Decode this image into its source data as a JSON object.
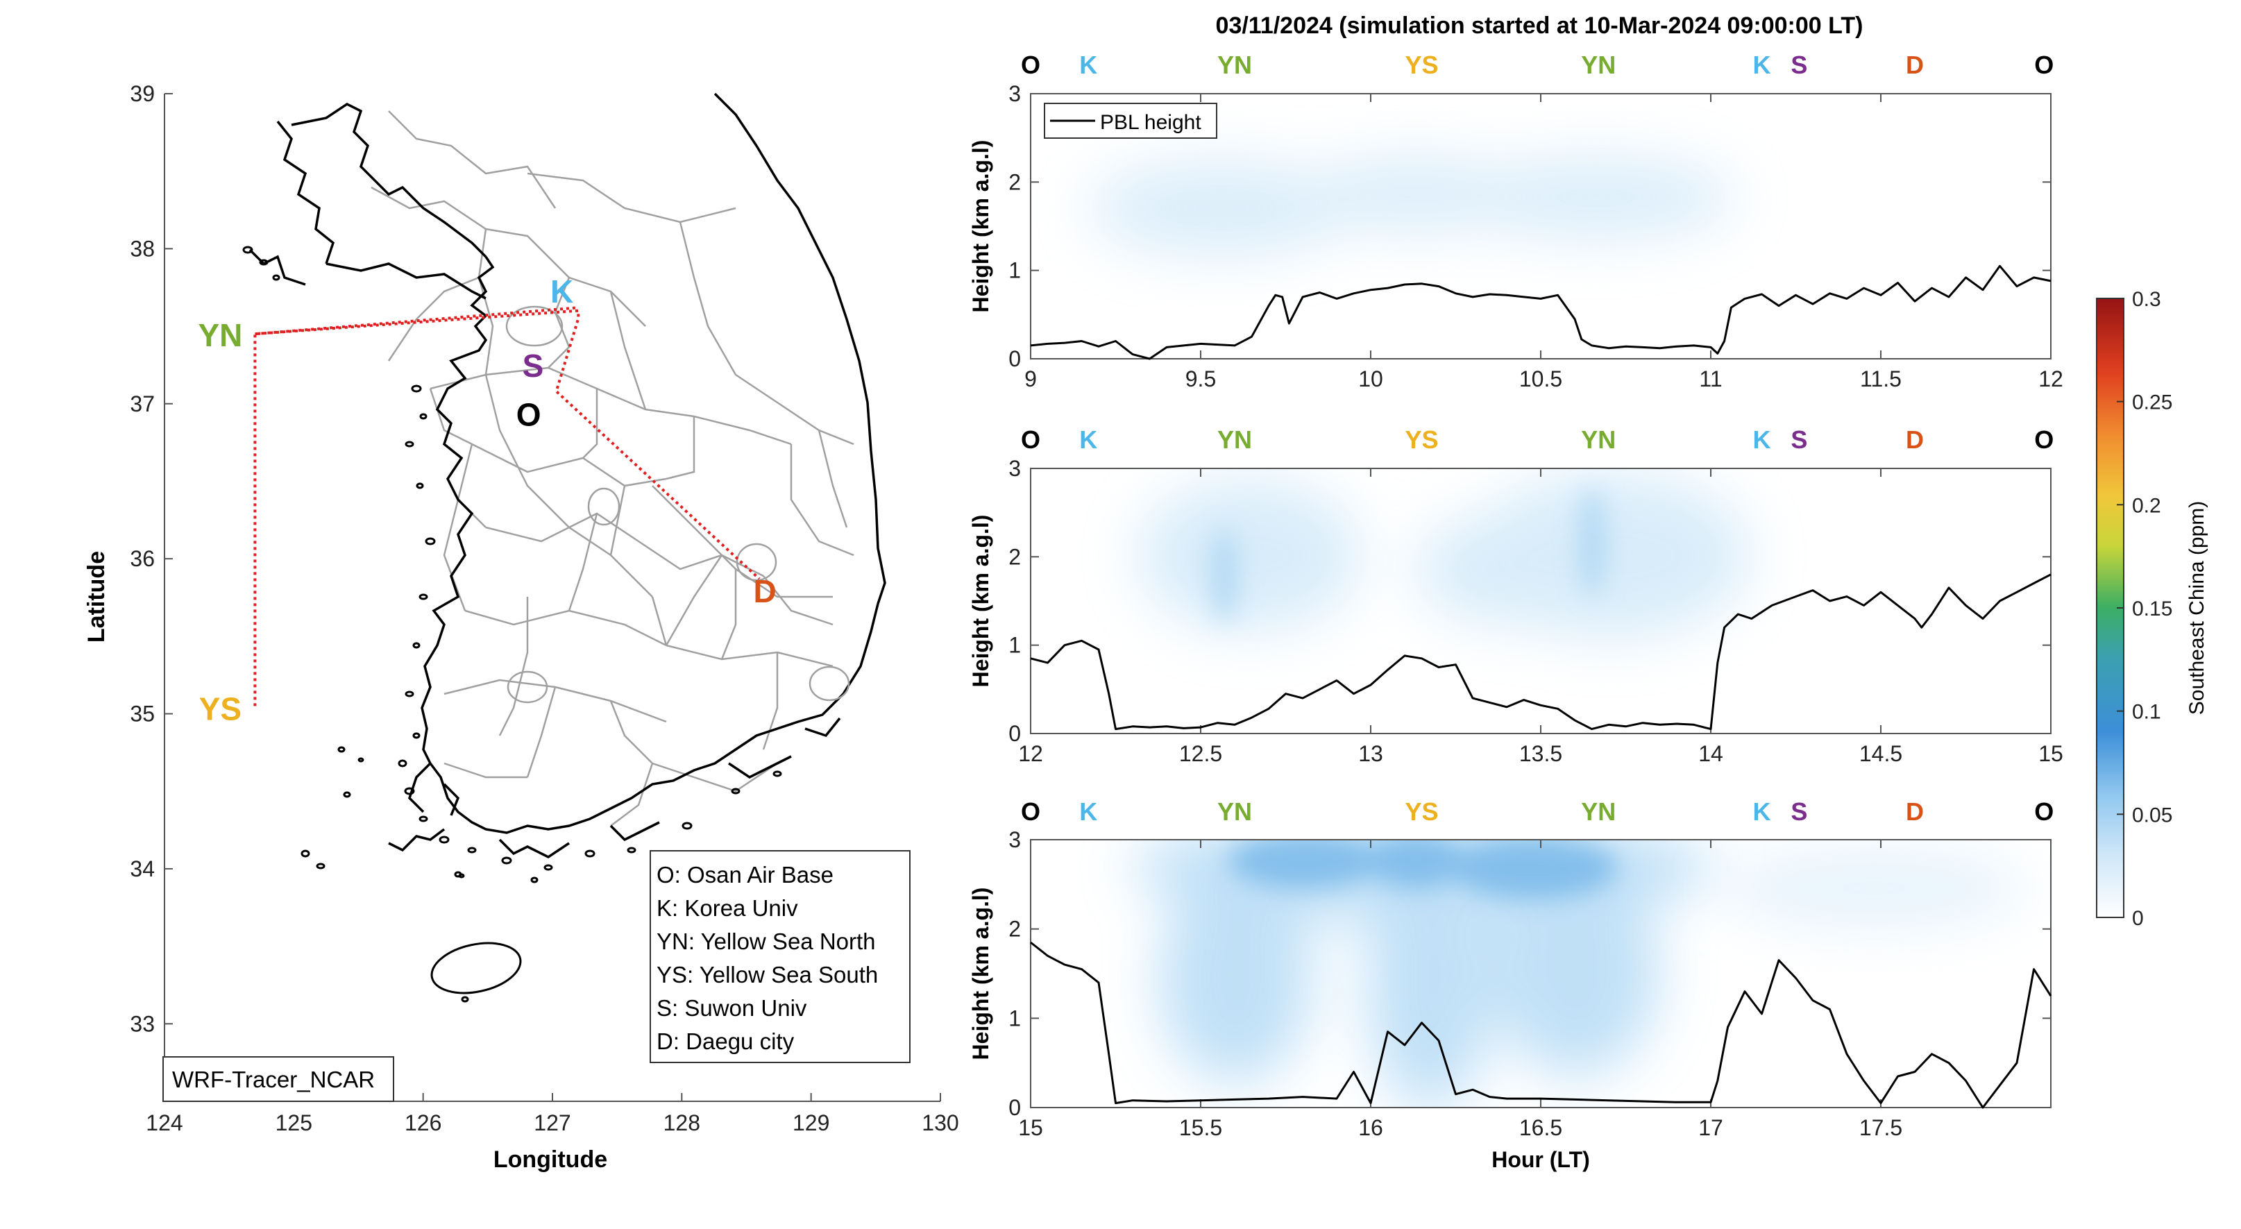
{
  "figure_title": "03/11/2024 (simulation started at 10-Mar-2024 09:00:00 LT)",
  "colors": {
    "O": "#000000",
    "K": "#4db6e8",
    "S": "#7b2d8e",
    "YN": "#77ac30",
    "YS": "#edb120",
    "D": "#d95319",
    "route": "#e02020",
    "pbl": "#000000",
    "colormap": [
      "#ffffff",
      "#d6ecfa",
      "#9fd0f2",
      "#4a9ee0",
      "#2e8bd0",
      "#3cae64",
      "#e8d23a",
      "#f09838",
      "#e04020",
      "#9a1414"
    ]
  },
  "map": {
    "xlabel": "Longitude",
    "ylabel": "Latitude",
    "xticks": [
      "124",
      "125",
      "126",
      "127",
      "128",
      "129",
      "130"
    ],
    "yticks": [
      "33",
      "34",
      "35",
      "36",
      "37",
      "38",
      "39"
    ],
    "xlim": [
      124,
      130
    ],
    "ylim": [
      32.5,
      39
    ],
    "model_label": "WRF-Tracer_NCAR",
    "sites": [
      {
        "id": "YN",
        "label": "YN",
        "lon": 124.7,
        "lat": 37.45
      },
      {
        "id": "YS",
        "label": "YS",
        "lon": 124.7,
        "lat": 35.05
      },
      {
        "id": "K",
        "label": "K",
        "lon": 127.03,
        "lat": 37.59
      },
      {
        "id": "S",
        "label": "S",
        "lon": 127.0,
        "lat": 37.3
      },
      {
        "id": "O",
        "label": "O",
        "lon": 127.03,
        "lat": 37.09
      },
      {
        "id": "D",
        "label": "D",
        "lon": 128.6,
        "lat": 35.87
      }
    ],
    "legend": [
      "O: Osan Air Base",
      "K: Korea Univ",
      "YN: Yellow Sea North",
      "YS: Yellow Sea South",
      "S: Suwon Univ",
      "D: Daegu city"
    ]
  },
  "chart_data": [
    {
      "type": "line",
      "panel": "top",
      "xlim": [
        9,
        12
      ],
      "ylim": [
        0,
        3
      ],
      "xticks": [
        "9",
        "9.5",
        "10",
        "10.5",
        "11",
        "11.5",
        "12"
      ],
      "yticks": [
        "0",
        "1",
        "2",
        "3"
      ],
      "ylabel": "Height (km a.g.l)",
      "legend": "PBL height",
      "site_markers": [
        {
          "label": "O",
          "x": 9.0
        },
        {
          "label": "K",
          "x": 9.17
        },
        {
          "label": "YN",
          "x": 9.6
        },
        {
          "label": "YS",
          "x": 10.15
        },
        {
          "label": "YN",
          "x": 10.67
        },
        {
          "label": "K",
          "x": 11.15
        },
        {
          "label": "S",
          "x": 11.26
        },
        {
          "label": "D",
          "x": 11.6
        },
        {
          "label": "O",
          "x": 11.98
        }
      ],
      "series": [
        {
          "name": "PBL height",
          "x": [
            9.0,
            9.05,
            9.1,
            9.15,
            9.2,
            9.25,
            9.3,
            9.35,
            9.4,
            9.45,
            9.5,
            9.55,
            9.6,
            9.65,
            9.7,
            9.72,
            9.74,
            9.76,
            9.8,
            9.85,
            9.9,
            9.95,
            10.0,
            10.05,
            10.1,
            10.15,
            10.2,
            10.25,
            10.3,
            10.35,
            10.4,
            10.45,
            10.5,
            10.55,
            10.6,
            10.62,
            10.65,
            10.7,
            10.75,
            10.8,
            10.85,
            10.9,
            10.95,
            11.0,
            11.02,
            11.04,
            11.06,
            11.1,
            11.15,
            11.2,
            11.25,
            11.3,
            11.35,
            11.4,
            11.45,
            11.5,
            11.55,
            11.6,
            11.65,
            11.7,
            11.75,
            11.8,
            11.85,
            11.9,
            11.95,
            12.0
          ],
          "y": [
            0.15,
            0.17,
            0.18,
            0.2,
            0.14,
            0.2,
            0.05,
            0.0,
            0.13,
            0.15,
            0.17,
            0.16,
            0.15,
            0.25,
            0.6,
            0.72,
            0.7,
            0.4,
            0.7,
            0.75,
            0.68,
            0.74,
            0.78,
            0.8,
            0.84,
            0.85,
            0.82,
            0.74,
            0.7,
            0.73,
            0.72,
            0.7,
            0.68,
            0.72,
            0.45,
            0.22,
            0.15,
            0.12,
            0.14,
            0.13,
            0.12,
            0.14,
            0.15,
            0.13,
            0.06,
            0.2,
            0.58,
            0.68,
            0.73,
            0.6,
            0.72,
            0.62,
            0.74,
            0.68,
            0.8,
            0.72,
            0.86,
            0.65,
            0.8,
            0.7,
            0.92,
            0.78,
            1.05,
            0.82,
            0.92,
            0.88
          ]
        }
      ]
    },
    {
      "type": "line",
      "panel": "middle",
      "xlim": [
        12,
        15
      ],
      "ylim": [
        0,
        3
      ],
      "xticks": [
        "12",
        "12.5",
        "13",
        "13.5",
        "14",
        "14.5",
        "15"
      ],
      "yticks": [
        "0",
        "1",
        "2",
        "3"
      ],
      "ylabel": "Height (km a.g.l)",
      "site_markers": [
        {
          "label": "O",
          "x": 12.0
        },
        {
          "label": "K",
          "x": 12.17
        },
        {
          "label": "YN",
          "x": 12.6
        },
        {
          "label": "YS",
          "x": 13.15
        },
        {
          "label": "YN",
          "x": 13.67
        },
        {
          "label": "K",
          "x": 14.15
        },
        {
          "label": "S",
          "x": 14.26
        },
        {
          "label": "D",
          "x": 14.6
        },
        {
          "label": "O",
          "x": 14.98
        }
      ],
      "series": [
        {
          "name": "PBL height",
          "x": [
            12.0,
            12.05,
            12.1,
            12.15,
            12.2,
            12.23,
            12.25,
            12.3,
            12.35,
            12.4,
            12.45,
            12.5,
            12.55,
            12.6,
            12.65,
            12.7,
            12.75,
            12.8,
            12.85,
            12.9,
            12.95,
            13.0,
            13.05,
            13.1,
            13.15,
            13.2,
            13.25,
            13.3,
            13.35,
            13.4,
            13.45,
            13.5,
            13.55,
            13.6,
            13.65,
            13.7,
            13.75,
            13.8,
            13.85,
            13.9,
            13.95,
            14.0,
            14.02,
            14.04,
            14.08,
            14.12,
            14.18,
            14.25,
            14.3,
            14.35,
            14.4,
            14.45,
            14.5,
            14.55,
            14.6,
            14.62,
            14.65,
            14.7,
            14.75,
            14.8,
            14.85,
            14.9,
            14.95,
            15.0
          ],
          "y": [
            0.85,
            0.8,
            1.0,
            1.05,
            0.95,
            0.45,
            0.05,
            0.08,
            0.07,
            0.08,
            0.06,
            0.07,
            0.12,
            0.1,
            0.18,
            0.28,
            0.45,
            0.4,
            0.5,
            0.6,
            0.45,
            0.55,
            0.72,
            0.88,
            0.85,
            0.75,
            0.78,
            0.4,
            0.35,
            0.3,
            0.38,
            0.32,
            0.28,
            0.15,
            0.05,
            0.1,
            0.08,
            0.12,
            0.1,
            0.11,
            0.1,
            0.05,
            0.8,
            1.2,
            1.35,
            1.3,
            1.45,
            1.55,
            1.62,
            1.5,
            1.55,
            1.45,
            1.6,
            1.45,
            1.3,
            1.2,
            1.35,
            1.65,
            1.45,
            1.3,
            1.5,
            1.6,
            1.7,
            1.8
          ]
        }
      ]
    },
    {
      "type": "line",
      "panel": "bottom",
      "xlim": [
        15,
        18
      ],
      "ylim": [
        0,
        3
      ],
      "xticks": [
        "15",
        "15.5",
        "16",
        "16.5",
        "17",
        "17.5"
      ],
      "yticks": [
        "0",
        "1",
        "2",
        "3"
      ],
      "xlabel": "Hour (LT)",
      "ylabel": "Height (km a.g.l)",
      "site_markers": [
        {
          "label": "O",
          "x": 15.0
        },
        {
          "label": "K",
          "x": 15.17
        },
        {
          "label": "YN",
          "x": 15.6
        },
        {
          "label": "YS",
          "x": 16.15
        },
        {
          "label": "YN",
          "x": 16.67
        },
        {
          "label": "K",
          "x": 17.15
        },
        {
          "label": "S",
          "x": 17.26
        },
        {
          "label": "D",
          "x": 17.6
        },
        {
          "label": "O",
          "x": 17.98
        }
      ],
      "series": [
        {
          "name": "PBL height",
          "x": [
            15.0,
            15.05,
            15.1,
            15.15,
            15.2,
            15.23,
            15.25,
            15.3,
            15.4,
            15.5,
            15.6,
            15.7,
            15.8,
            15.9,
            15.95,
            16.0,
            16.05,
            16.1,
            16.15,
            16.2,
            16.25,
            16.3,
            16.35,
            16.4,
            16.5,
            16.6,
            16.7,
            16.8,
            16.9,
            17.0,
            17.02,
            17.05,
            17.1,
            17.15,
            17.2,
            17.25,
            17.3,
            17.35,
            17.4,
            17.45,
            17.5,
            17.55,
            17.6,
            17.65,
            17.7,
            17.75,
            17.8,
            17.85,
            17.9,
            17.95,
            18.0
          ],
          "y": [
            1.85,
            1.7,
            1.6,
            1.55,
            1.4,
            0.6,
            0.05,
            0.08,
            0.07,
            0.08,
            0.09,
            0.1,
            0.12,
            0.1,
            0.4,
            0.05,
            0.85,
            0.7,
            0.95,
            0.75,
            0.15,
            0.2,
            0.12,
            0.1,
            0.1,
            0.09,
            0.08,
            0.07,
            0.06,
            0.06,
            0.3,
            0.9,
            1.3,
            1.05,
            1.65,
            1.45,
            1.2,
            1.1,
            0.6,
            0.3,
            0.05,
            0.35,
            0.4,
            0.6,
            0.5,
            0.3,
            0.0,
            0.25,
            0.5,
            1.55,
            1.25
          ]
        }
      ]
    }
  ],
  "colorbar": {
    "label": "Southeast China (ppm)",
    "ticks": [
      "0",
      "0.05",
      "0.1",
      "0.15",
      "0.2",
      "0.25",
      "0.3"
    ],
    "range": [
      0,
      0.3
    ]
  }
}
